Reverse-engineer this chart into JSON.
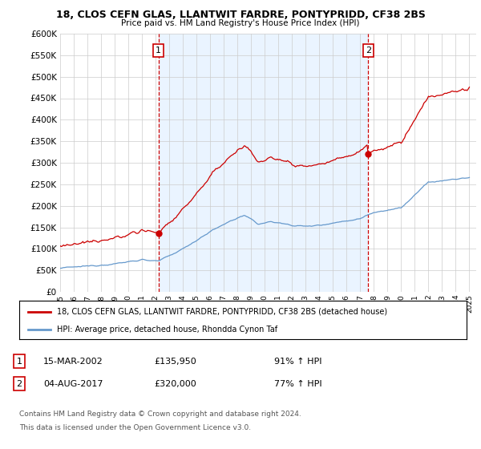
{
  "title": "18, CLOS CEFN GLAS, LLANTWIT FARDRE, PONTYPRIDD, CF38 2BS",
  "subtitle": "Price paid vs. HM Land Registry's House Price Index (HPI)",
  "ylim": [
    0,
    600000
  ],
  "yticks": [
    0,
    50000,
    100000,
    150000,
    200000,
    250000,
    300000,
    350000,
    400000,
    450000,
    500000,
    550000,
    600000
  ],
  "red_line_label": "18, CLOS CEFN GLAS, LLANTWIT FARDRE, PONTYPRIDD, CF38 2BS (detached house)",
  "blue_line_label": "HPI: Average price, detached house, Rhondda Cynon Taf",
  "annotation1_date": "15-MAR-2002",
  "annotation1_price": "£135,950",
  "annotation1_hpi": "91% ↑ HPI",
  "annotation2_date": "04-AUG-2017",
  "annotation2_price": "£320,000",
  "annotation2_hpi": "77% ↑ HPI",
  "footer": "Contains HM Land Registry data © Crown copyright and database right 2024.\nThis data is licensed under the Open Government Licence v3.0.",
  "red_color": "#cc0000",
  "blue_color": "#6699cc",
  "shade_color": "#ddeeff",
  "vline_color": "#cc0000",
  "grid_color": "#cccccc",
  "background_color": "#ffffff",
  "purchase1_year": 2002.2,
  "purchase1_price": 135950,
  "purchase2_year": 2017.58,
  "purchase2_price": 320000
}
